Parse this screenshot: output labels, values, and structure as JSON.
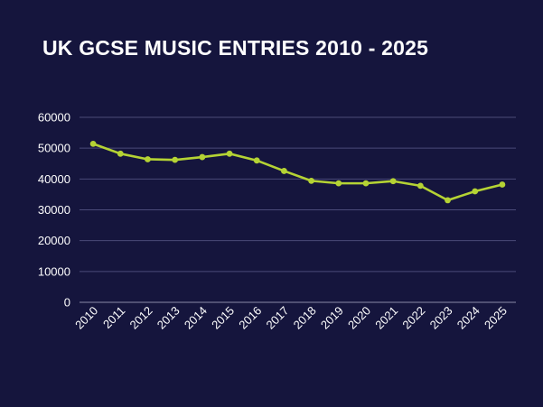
{
  "slide": {
    "title": "UK GCSE MUSIC ENTRIES 2010 - 2025"
  },
  "colors": {
    "background": "#15153d",
    "line": "#b5d334",
    "gridline": "#4a4a78",
    "text": "#ffffff"
  },
  "chart_data": {
    "type": "line",
    "title": "UK GCSE MUSIC ENTRIES 2010 - 2025",
    "xlabel": "",
    "ylabel": "",
    "categories": [
      "2010",
      "2011",
      "2012",
      "2013",
      "2014",
      "2015",
      "2016",
      "2017",
      "2018",
      "2019",
      "2020",
      "2021",
      "2022",
      "2023",
      "2024",
      "2025"
    ],
    "series": [
      {
        "values": [
          51400,
          48200,
          46400,
          46200,
          47100,
          48200,
          46000,
          42600,
          39400,
          38600,
          38600,
          39300,
          37800,
          33100,
          36000,
          38200
        ]
      }
    ],
    "ylim": [
      0,
      60000
    ],
    "yticks": [
      "0",
      "10000",
      "20000",
      "30000",
      "40000",
      "50000",
      "60000"
    ],
    "grid": true,
    "legend": "none"
  }
}
